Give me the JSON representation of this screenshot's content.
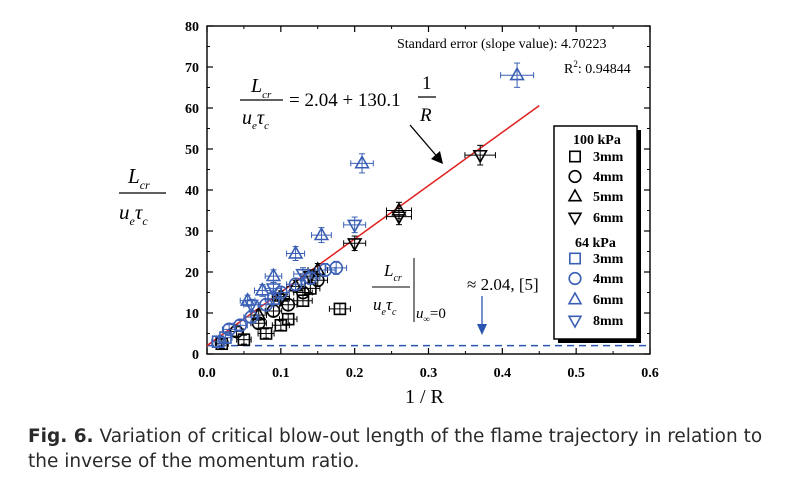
{
  "caption": {
    "label": "Fig. 6.",
    "text": " Variation of critical blow-out length of the flame trajectory in relation to the inverse of the momentum ratio."
  },
  "colors": {
    "black": "#000000",
    "blue": "#3a5fb5",
    "red": "#e0201f",
    "dashed": "#2b55b0"
  },
  "chart_data": {
    "type": "scatter",
    "xlabel": "1 / R",
    "ylabel": "L_cr / (u_e τ_c)",
    "xlim": [
      0.0,
      0.6
    ],
    "ylim": [
      0,
      80
    ],
    "x_ticks": [
      "0.0",
      "0.1",
      "0.2",
      "0.3",
      "0.4",
      "0.5",
      "0.6"
    ],
    "y_ticks": [
      "0",
      "10",
      "20",
      "30",
      "40",
      "50",
      "60",
      "70",
      "80"
    ],
    "grid": false,
    "legend_position": "right",
    "annotations": {
      "stats_line1": "Standard error (slope value): 4.70223",
      "stats_line2_prefix": "R",
      "stats_line2_sup": "2",
      "stats_line2_value": ": 0.94844",
      "fit_lhs_num": "L",
      "fit_lhs_num_sub": "cr",
      "fit_lhs_den": "u",
      "fit_lhs_den_sub1": "e",
      "fit_lhs_den_tau": "τ",
      "fit_lhs_den_sub2": "c",
      "fit_rhs": "= 2.04 + 130.1",
      "fit_frac_num": "1",
      "fit_frac_den": "R",
      "limit_num": "L",
      "limit_num_sub": "cr",
      "limit_den": "u",
      "limit_den_sub1": "e",
      "limit_tau": "τ",
      "limit_sub2": "c",
      "limit_cond": "u",
      "limit_cond_sub": "∞",
      "limit_cond_val": "=0",
      "limit_value": "≈ 2.04, [5]"
    },
    "fit_line": {
      "intercept": 2.04,
      "slope": 130.1,
      "x_range": [
        0.0,
        0.45
      ]
    },
    "baseline": {
      "y": 2.04
    },
    "legend": {
      "group1_title": "100 kPa",
      "group2_title": "64 kPa",
      "items": [
        {
          "group": "100 kPa",
          "marker": "square",
          "color": "black",
          "label": "3mm"
        },
        {
          "group": "100 kPa",
          "marker": "circle",
          "color": "black",
          "label": "4mm"
        },
        {
          "group": "100 kPa",
          "marker": "triangle-up",
          "color": "black",
          "label": "5mm"
        },
        {
          "group": "100 kPa",
          "marker": "triangle-down",
          "color": "black",
          "label": "6mm"
        },
        {
          "group": "64 kPa",
          "marker": "square",
          "color": "blue",
          "label": "3mm"
        },
        {
          "group": "64 kPa",
          "marker": "circle",
          "color": "blue",
          "label": "4mm"
        },
        {
          "group": "64 kPa",
          "marker": "triangle-up",
          "color": "blue",
          "label": "6mm"
        },
        {
          "group": "64 kPa",
          "marker": "triangle-down",
          "color": "blue",
          "label": "8mm"
        }
      ]
    },
    "series": [
      {
        "name": "100 kPa 3mm",
        "marker": "square",
        "color": "black",
        "points": [
          [
            0.02,
            2.5
          ],
          [
            0.05,
            3.5
          ],
          [
            0.08,
            5.0
          ],
          [
            0.1,
            7.0
          ],
          [
            0.11,
            8.5
          ],
          [
            0.13,
            13.0
          ],
          [
            0.14,
            16.0
          ],
          [
            0.18,
            11.0
          ]
        ]
      },
      {
        "name": "100 kPa 4mm",
        "marker": "circle",
        "color": "black",
        "points": [
          [
            0.04,
            5.5
          ],
          [
            0.07,
            7.5
          ],
          [
            0.09,
            10.5
          ],
          [
            0.11,
            12.0
          ],
          [
            0.13,
            15.0
          ],
          [
            0.15,
            18.0
          ]
        ]
      },
      {
        "name": "100 kPa 5mm",
        "marker": "triangle-up",
        "color": "black",
        "points": [
          [
            0.07,
            9.5
          ],
          [
            0.1,
            14.0
          ],
          [
            0.12,
            16.5
          ],
          [
            0.15,
            20.5
          ],
          [
            0.26,
            35.0
          ]
        ]
      },
      {
        "name": "100 kPa 6mm",
        "marker": "triangle-down",
        "color": "black",
        "points": [
          [
            0.1,
            13.5
          ],
          [
            0.14,
            19.0
          ],
          [
            0.2,
            27.0
          ],
          [
            0.26,
            33.5
          ],
          [
            0.37,
            48.5
          ]
        ]
      },
      {
        "name": "64 kPa 3mm",
        "marker": "square",
        "color": "blue",
        "points": [
          [
            0.015,
            3.0
          ],
          [
            0.025,
            4.0
          ],
          [
            0.09,
            13.5
          ]
        ]
      },
      {
        "name": "64 kPa 4mm",
        "marker": "circle",
        "color": "blue",
        "points": [
          [
            0.03,
            6.0
          ],
          [
            0.045,
            7.0
          ],
          [
            0.06,
            9.0
          ],
          [
            0.08,
            12.0
          ],
          [
            0.1,
            15.0
          ],
          [
            0.12,
            17.0
          ],
          [
            0.14,
            18.5
          ],
          [
            0.16,
            20.5
          ],
          [
            0.175,
            21.0
          ]
        ]
      },
      {
        "name": "64 kPa 6mm",
        "marker": "triangle-up",
        "color": "blue",
        "points": [
          [
            0.055,
            13.0
          ],
          [
            0.075,
            15.5
          ],
          [
            0.09,
            19.0
          ],
          [
            0.12,
            24.5
          ],
          [
            0.155,
            29.0
          ],
          [
            0.21,
            46.5
          ],
          [
            0.42,
            68.0
          ]
        ]
      },
      {
        "name": "64 kPa 8mm",
        "marker": "triangle-down",
        "color": "blue",
        "points": [
          [
            0.06,
            12.0
          ],
          [
            0.09,
            16.0
          ],
          [
            0.13,
            19.5
          ],
          [
            0.2,
            31.5
          ]
        ]
      }
    ]
  }
}
